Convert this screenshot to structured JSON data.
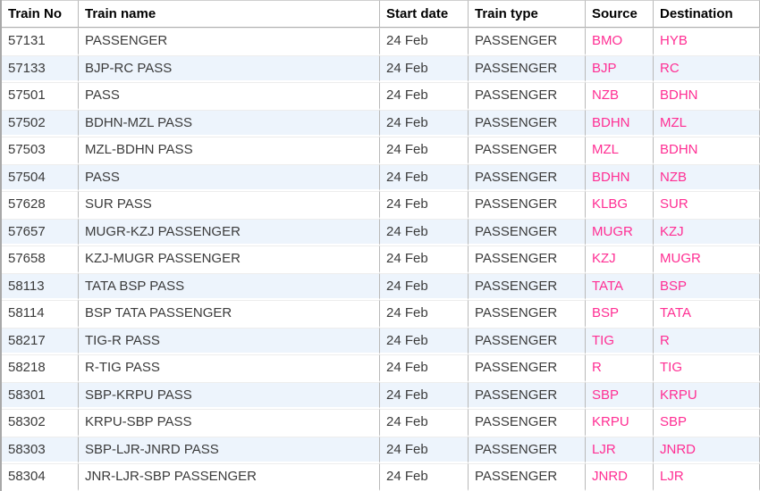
{
  "table": {
    "columns": [
      "Train No",
      "Train name",
      "Start date",
      "Train type",
      "Source",
      "Destination"
    ],
    "rows": [
      [
        "57131",
        "PASSENGER",
        "24 Feb",
        "PASSENGER",
        "BMO",
        "HYB"
      ],
      [
        "57133",
        "BJP-RC PASS",
        "24 Feb",
        "PASSENGER",
        "BJP",
        "RC"
      ],
      [
        "57501",
        "PASS",
        "24 Feb",
        "PASSENGER",
        "NZB",
        "BDHN"
      ],
      [
        "57502",
        "BDHN-MZL PASS",
        "24 Feb",
        "PASSENGER",
        "BDHN",
        "MZL"
      ],
      [
        "57503",
        "MZL-BDHN PASS",
        "24 Feb",
        "PASSENGER",
        "MZL",
        "BDHN"
      ],
      [
        "57504",
        "PASS",
        "24 Feb",
        "PASSENGER",
        "BDHN",
        "NZB"
      ],
      [
        "57628",
        "SUR PASS",
        "24 Feb",
        "PASSENGER",
        "KLBG",
        "SUR"
      ],
      [
        "57657",
        "MUGR-KZJ PASSENGER",
        "24 Feb",
        "PASSENGER",
        "MUGR",
        "KZJ"
      ],
      [
        "57658",
        "KZJ-MUGR PASSENGER",
        "24 Feb",
        "PASSENGER",
        "KZJ",
        "MUGR"
      ],
      [
        "58113",
        "TATA BSP PASS",
        "24 Feb",
        "PASSENGER",
        "TATA",
        "BSP"
      ],
      [
        "58114",
        "BSP TATA PASSENGER",
        "24 Feb",
        "PASSENGER",
        "BSP",
        "TATA"
      ],
      [
        "58217",
        "TIG-R PASS",
        "24 Feb",
        "PASSENGER",
        "TIG",
        "R"
      ],
      [
        "58218",
        "R-TIG PASS",
        "24 Feb",
        "PASSENGER",
        "R",
        "TIG"
      ],
      [
        "58301",
        "SBP-KRPU PASS",
        "24 Feb",
        "PASSENGER",
        "SBP",
        "KRPU"
      ],
      [
        "58302",
        "KRPU-SBP PASS",
        "24 Feb",
        "PASSENGER",
        "KRPU",
        "SBP"
      ],
      [
        "58303",
        "SBP-LJR-JNRD PASS",
        "24 Feb",
        "PASSENGER",
        "LJR",
        "JNRD"
      ],
      [
        "58304",
        "JNR-LJR-SBP PASSENGER",
        "24 Feb",
        "PASSENGER",
        "JNRD",
        "LJR"
      ]
    ]
  },
  "colors": {
    "link_pink": "#FF2E93",
    "alt_row_blue": "#EDF4FC",
    "header_text": "#000000",
    "body_text": "#3B3B3B",
    "grid_line": "#B9B9B9"
  }
}
